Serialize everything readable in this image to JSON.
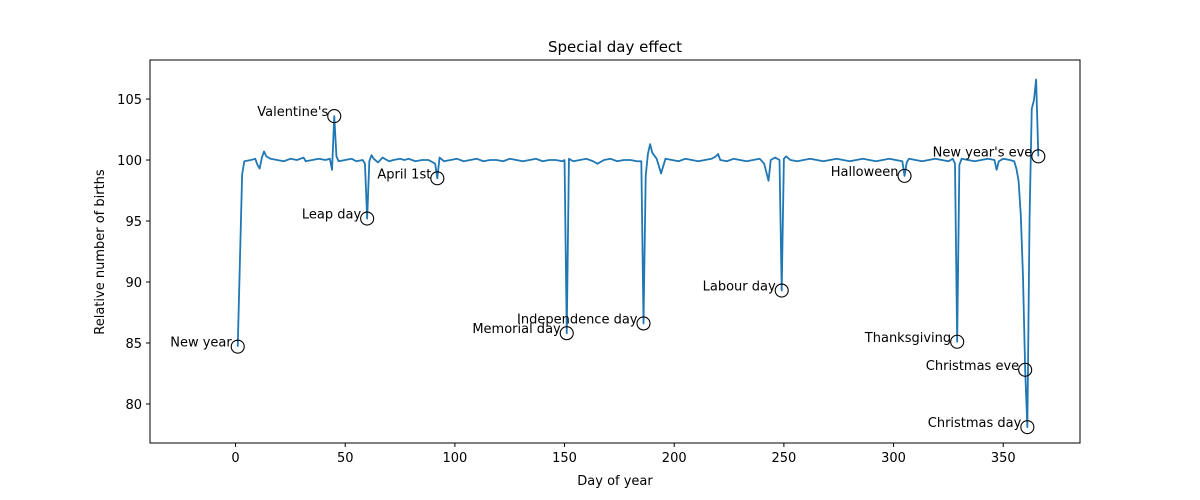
{
  "chart_data": {
    "type": "line",
    "title": "Special day effect",
    "xlabel": "Day of year",
    "ylabel": "Relative number of births",
    "xlim": [
      -39,
      385
    ],
    "ylim": [
      76.8,
      108.2
    ],
    "xticks": [
      0,
      50,
      100,
      150,
      200,
      250,
      300,
      350
    ],
    "yticks": [
      80,
      85,
      90,
      95,
      100,
      105
    ],
    "line_color": "#1f77b4",
    "grid": false,
    "baseline": 100,
    "series_points": [
      [
        1,
        84.7
      ],
      [
        3,
        98.8
      ],
      [
        4,
        99.9
      ],
      [
        7,
        100.0
      ],
      [
        9,
        100.1
      ],
      [
        10,
        99.6
      ],
      [
        11,
        99.3
      ],
      [
        12,
        100.2
      ],
      [
        13,
        100.7
      ],
      [
        14,
        100.3
      ],
      [
        16,
        100.1
      ],
      [
        19,
        100.0
      ],
      [
        22,
        99.9
      ],
      [
        25,
        100.1
      ],
      [
        28,
        100.0
      ],
      [
        31,
        100.2
      ],
      [
        32,
        99.9
      ],
      [
        35,
        100.0
      ],
      [
        38,
        100.1
      ],
      [
        41,
        100.0
      ],
      [
        43,
        100.1
      ],
      [
        44,
        99.2
      ],
      [
        45,
        103.6
      ],
      [
        46,
        100.3
      ],
      [
        47,
        99.9
      ],
      [
        50,
        100.0
      ],
      [
        53,
        100.1
      ],
      [
        55,
        99.9
      ],
      [
        58,
        100.0
      ],
      [
        59,
        99.7
      ],
      [
        60,
        95.2
      ],
      [
        61,
        99.9
      ],
      [
        62,
        100.4
      ],
      [
        63,
        100.1
      ],
      [
        65,
        99.8
      ],
      [
        67,
        100.2
      ],
      [
        70,
        99.9
      ],
      [
        72,
        100.0
      ],
      [
        75,
        100.1
      ],
      [
        77,
        100.0
      ],
      [
        79,
        100.1
      ],
      [
        82,
        99.9
      ],
      [
        85,
        100.0
      ],
      [
        88,
        100.0
      ],
      [
        91,
        99.7
      ],
      [
        92,
        98.5
      ],
      [
        93,
        100.2
      ],
      [
        95,
        99.9
      ],
      [
        98,
        100.0
      ],
      [
        101,
        100.1
      ],
      [
        104,
        99.9
      ],
      [
        107,
        100.0
      ],
      [
        110,
        100.1
      ],
      [
        113,
        99.9
      ],
      [
        116,
        100.0
      ],
      [
        119,
        100.0
      ],
      [
        122,
        99.9
      ],
      [
        125,
        100.1
      ],
      [
        128,
        100.0
      ],
      [
        131,
        99.9
      ],
      [
        134,
        100.0
      ],
      [
        137,
        100.1
      ],
      [
        140,
        99.9
      ],
      [
        143,
        100.0
      ],
      [
        146,
        100.0
      ],
      [
        149,
        99.9
      ],
      [
        150,
        100.0
      ],
      [
        151,
        85.8
      ],
      [
        152,
        100.1
      ],
      [
        154,
        99.9
      ],
      [
        157,
        100.0
      ],
      [
        160,
        100.1
      ],
      [
        163,
        99.9
      ],
      [
        165,
        99.7
      ],
      [
        168,
        100.0
      ],
      [
        171,
        100.1
      ],
      [
        174,
        99.9
      ],
      [
        177,
        100.0
      ],
      [
        180,
        100.0
      ],
      [
        183,
        99.9
      ],
      [
        185,
        99.9
      ],
      [
        186,
        86.6
      ],
      [
        187,
        98.7
      ],
      [
        188,
        100.5
      ],
      [
        189,
        101.3
      ],
      [
        190,
        100.6
      ],
      [
        192,
        100.1
      ],
      [
        194,
        98.9
      ],
      [
        196,
        100.1
      ],
      [
        199,
        100.0
      ],
      [
        202,
        99.9
      ],
      [
        205,
        100.1
      ],
      [
        208,
        100.0
      ],
      [
        211,
        99.9
      ],
      [
        214,
        100.0
      ],
      [
        217,
        100.1
      ],
      [
        219,
        100.3
      ],
      [
        220,
        100.5
      ],
      [
        221,
        100.0
      ],
      [
        224,
        99.9
      ],
      [
        227,
        100.1
      ],
      [
        230,
        100.0
      ],
      [
        233,
        99.9
      ],
      [
        236,
        100.0
      ],
      [
        239,
        100.1
      ],
      [
        241,
        99.7
      ],
      [
        243,
        98.3
      ],
      [
        244,
        100.0
      ],
      [
        246,
        100.2
      ],
      [
        248,
        100.0
      ],
      [
        249,
        89.3
      ],
      [
        250,
        100.1
      ],
      [
        251,
        100.3
      ],
      [
        253,
        100.0
      ],
      [
        256,
        99.9
      ],
      [
        259,
        100.0
      ],
      [
        262,
        100.1
      ],
      [
        265,
        100.0
      ],
      [
        268,
        99.9
      ],
      [
        271,
        100.0
      ],
      [
        274,
        100.1
      ],
      [
        277,
        100.0
      ],
      [
        280,
        99.9
      ],
      [
        283,
        100.0
      ],
      [
        286,
        100.1
      ],
      [
        289,
        100.0
      ],
      [
        292,
        99.9
      ],
      [
        295,
        100.0
      ],
      [
        298,
        100.1
      ],
      [
        301,
        100.0
      ],
      [
        304,
        99.9
      ],
      [
        305,
        98.7
      ],
      [
        306,
        99.8
      ],
      [
        307,
        100.1
      ],
      [
        310,
        100.0
      ],
      [
        313,
        99.9
      ],
      [
        316,
        100.0
      ],
      [
        319,
        100.1
      ],
      [
        322,
        100.0
      ],
      [
        325,
        99.9
      ],
      [
        327,
        100.1
      ],
      [
        328,
        99.7
      ],
      [
        329,
        85.1
      ],
      [
        330,
        99.6
      ],
      [
        331,
        100.1
      ],
      [
        334,
        100.0
      ],
      [
        337,
        99.9
      ],
      [
        340,
        100.0
      ],
      [
        343,
        100.1
      ],
      [
        346,
        100.0
      ],
      [
        347,
        99.2
      ],
      [
        348,
        99.9
      ],
      [
        350,
        100.1
      ],
      [
        353,
        100.0
      ],
      [
        355,
        99.9
      ],
      [
        356,
        99.3
      ],
      [
        357,
        98.3
      ],
      [
        358,
        95.5
      ],
      [
        359,
        90.5
      ],
      [
        360,
        82.8
      ],
      [
        361,
        78.1
      ],
      [
        362,
        95.2
      ],
      [
        363,
        104.2
      ],
      [
        364,
        104.9
      ],
      [
        365,
        106.6
      ],
      [
        366,
        100.3
      ]
    ],
    "annotations": [
      {
        "label": "New year",
        "day": 1,
        "value": 84.7
      },
      {
        "label": "Valentine's",
        "day": 45,
        "value": 103.6
      },
      {
        "label": "Leap day",
        "day": 60,
        "value": 95.2
      },
      {
        "label": "April 1st",
        "day": 92,
        "value": 98.5
      },
      {
        "label": "Memorial day",
        "day": 151,
        "value": 85.8
      },
      {
        "label": "Independence day",
        "day": 186,
        "value": 86.6
      },
      {
        "label": "Labour day",
        "day": 249,
        "value": 89.3
      },
      {
        "label": "Halloween",
        "day": 305,
        "value": 98.7
      },
      {
        "label": "Thanksgiving",
        "day": 329,
        "value": 85.1
      },
      {
        "label": "Christmas eve",
        "day": 360,
        "value": 82.8
      },
      {
        "label": "Christmas day",
        "day": 361,
        "value": 78.1
      },
      {
        "label": "New year's eve",
        "day": 366,
        "value": 100.3
      }
    ]
  }
}
